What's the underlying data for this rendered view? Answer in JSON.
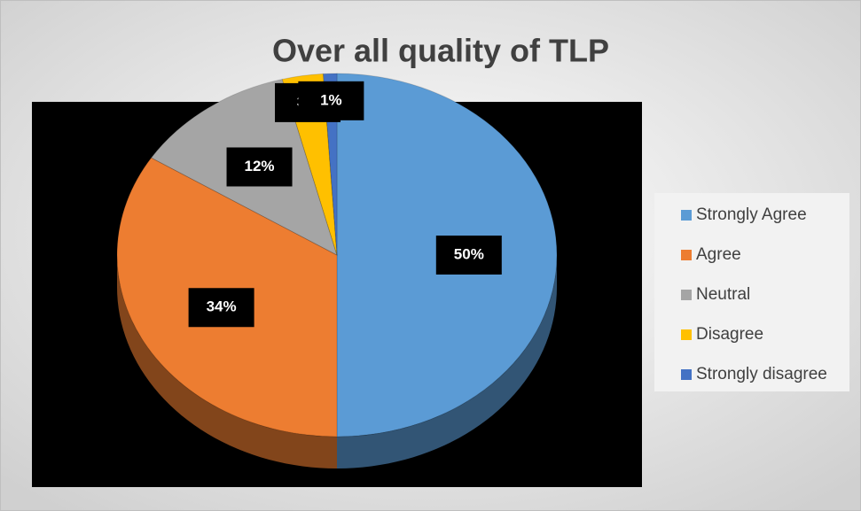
{
  "chart_data": {
    "type": "pie",
    "title": "Over all quality of TLP",
    "categories": [
      "Strongly Agree",
      "Agree",
      "Neutral",
      "Disagree",
      "Strongly disagree"
    ],
    "values": [
      50,
      34,
      12,
      3,
      1
    ],
    "value_labels": [
      "50%",
      "34%",
      "12%",
      "3%",
      "1%"
    ],
    "colors": [
      "#5b9bd5",
      "#ed7d31",
      "#a5a5a5",
      "#ffc000",
      "#4472c4"
    ],
    "legend": "right"
  }
}
